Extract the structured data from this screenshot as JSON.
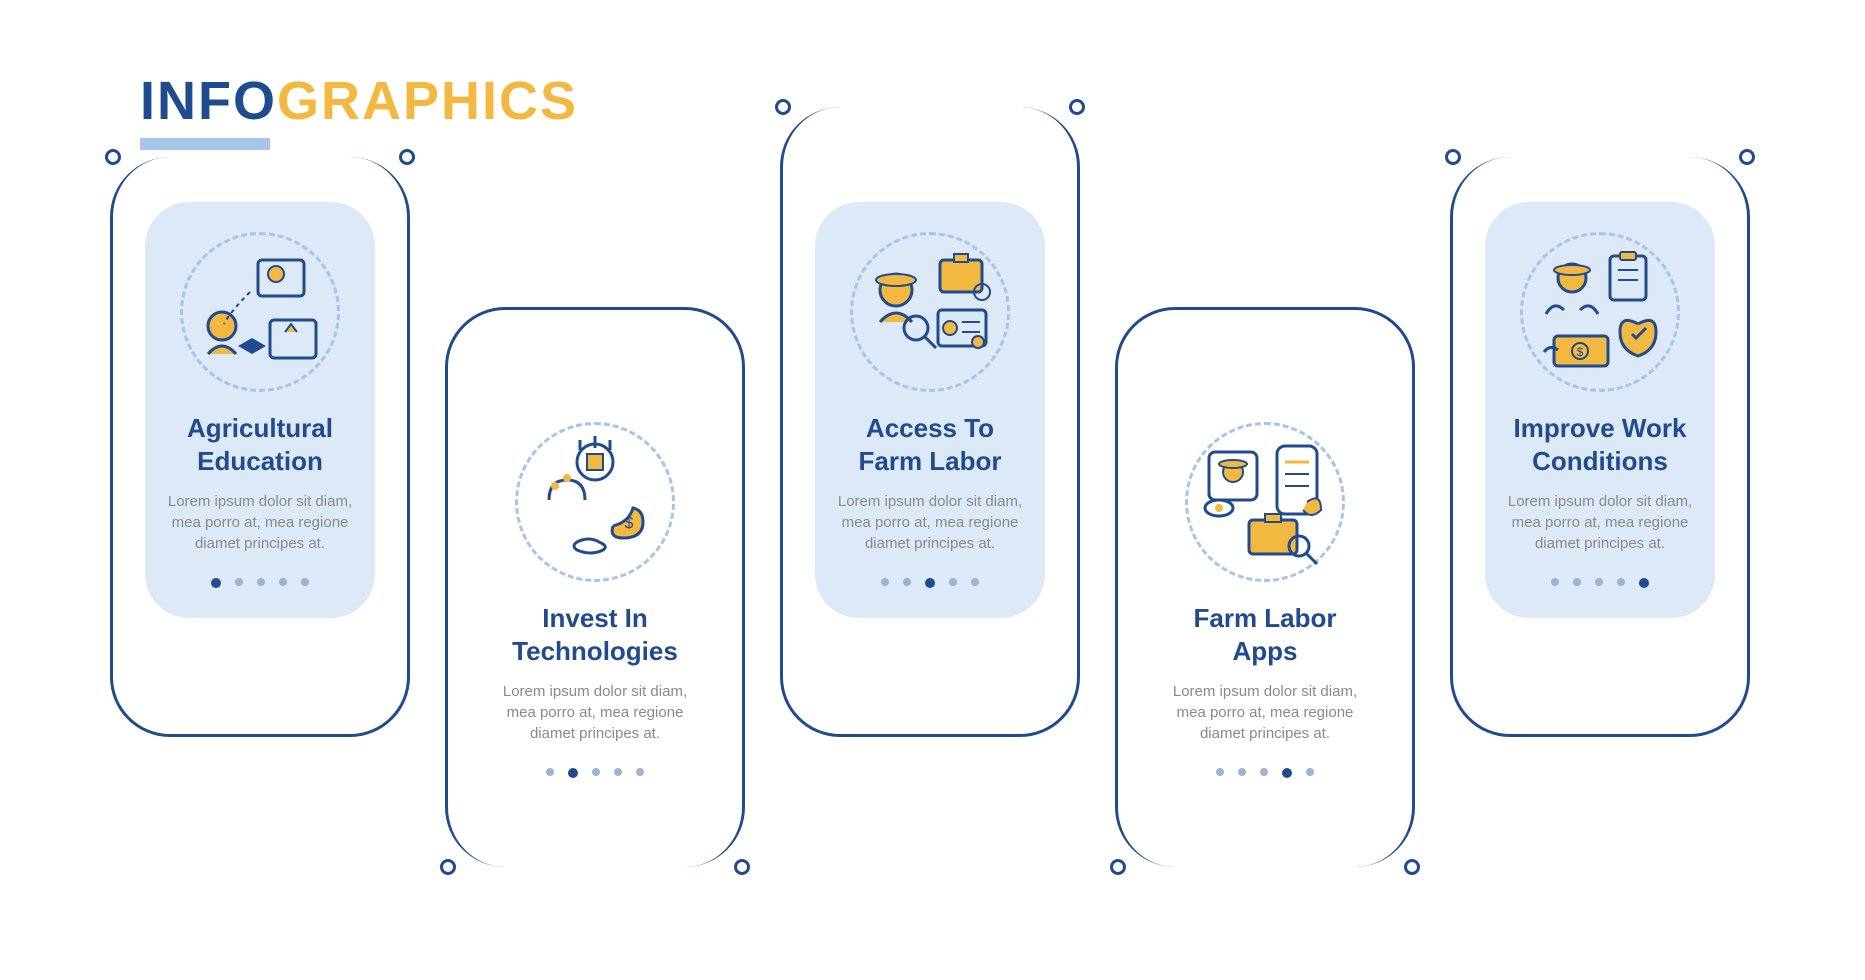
{
  "colors": {
    "primary": "#204b8f",
    "accent": "#f3b83f",
    "light_bg": "#dde9f7",
    "light_line": "#a7c5e8",
    "body_text": "#8a8a8a",
    "dot": "#9ab3d6"
  },
  "typography": {
    "title_size": 54,
    "card_title_size": 26,
    "body_size": 15
  },
  "title": {
    "part1": "INFO",
    "part2": "GRAPHICS"
  },
  "lorem": "Lorem ipsum dolor sit diam, mea porro at, mea regione diamet principes at.",
  "cards": [
    {
      "id": "agricultural-education",
      "title": "Agricultural Education",
      "icon": "education",
      "style": "light",
      "row": "up",
      "active_dot": 0
    },
    {
      "id": "invest-in-technologies",
      "title": "Invest In Technologies",
      "icon": "tech",
      "style": "plain",
      "row": "down",
      "active_dot": 1
    },
    {
      "id": "access-to-farm-labor",
      "title": "Access To Farm Labor",
      "icon": "labor",
      "style": "light",
      "row": "up-center",
      "active_dot": 2
    },
    {
      "id": "farm-labor-apps",
      "title": "Farm Labor Apps",
      "icon": "apps",
      "style": "plain",
      "row": "down",
      "active_dot": 3
    },
    {
      "id": "improve-work-conditions",
      "title": "Improve Work Conditions",
      "icon": "conditions",
      "style": "light",
      "row": "up",
      "active_dot": 4
    }
  ],
  "dot_count": 5
}
